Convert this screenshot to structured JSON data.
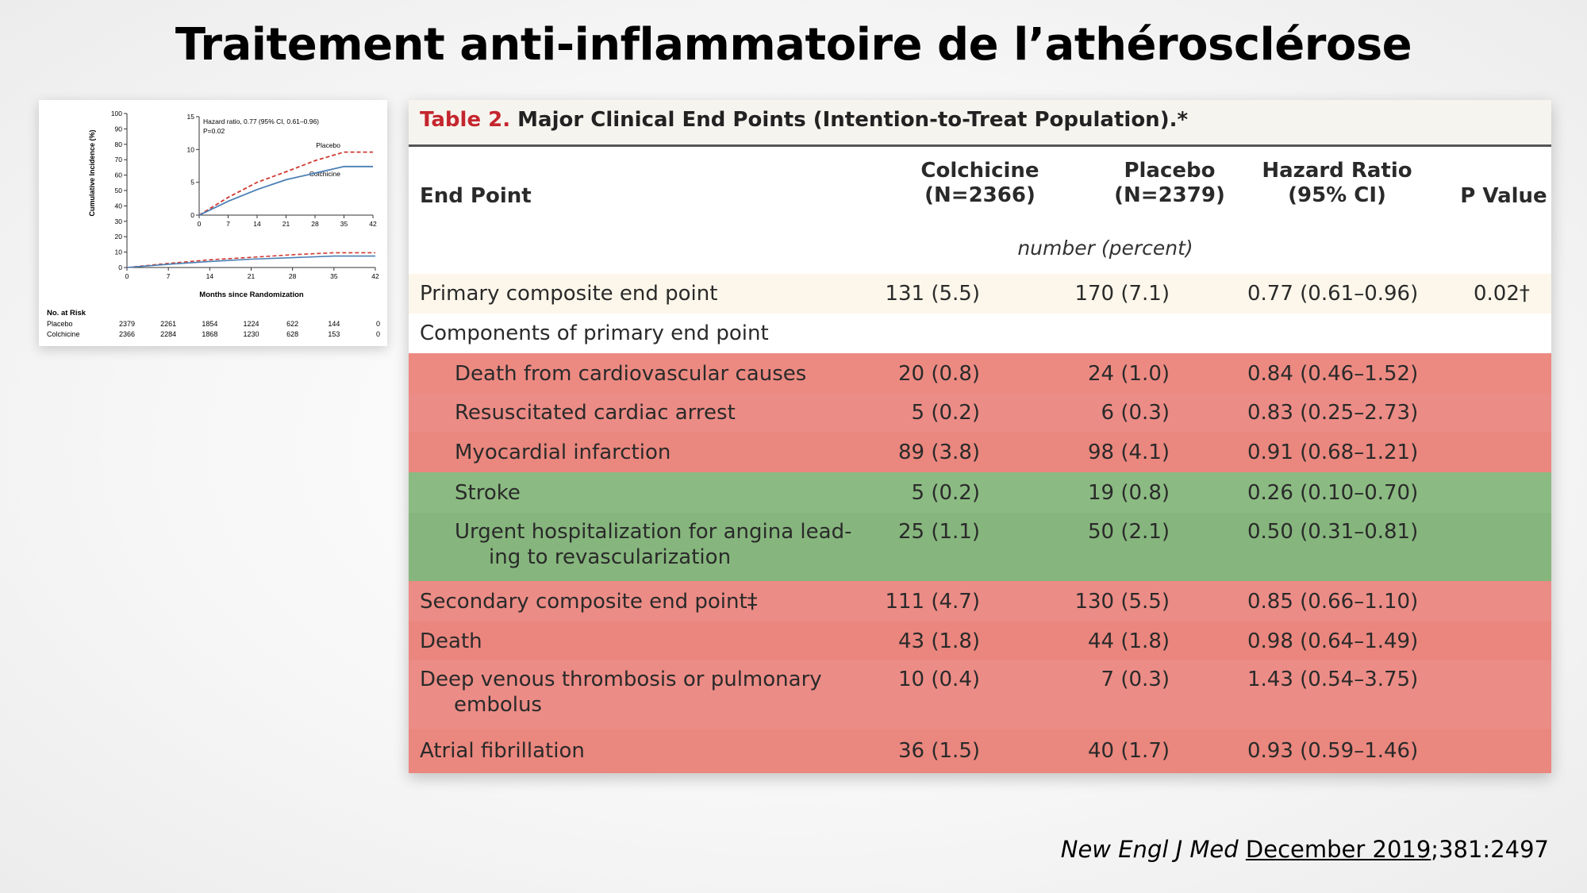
{
  "slide": {
    "title": "Traitement anti-inflammatoire de l’athérosclérose"
  },
  "km_chart": {
    "y_label": "Cumulative Incidence (%)",
    "x_label": "Months since Randomization",
    "y_ticks": [
      "0",
      "10",
      "20",
      "30",
      "40",
      "50",
      "60",
      "70",
      "80",
      "90",
      "100"
    ],
    "x_ticks": [
      "0",
      "7",
      "14",
      "21",
      "28",
      "35",
      "42"
    ],
    "inset_y_ticks": [
      "0",
      "5",
      "10",
      "15"
    ],
    "inset_x_ticks": [
      "0",
      "7",
      "14",
      "21",
      "28",
      "35",
      "42"
    ],
    "hr_text_1": "Hazard ratio, 0.77 (95% CI, 0.61–0.96)",
    "hr_text_2": "P=0.02",
    "placebo_label": "Placebo",
    "colchicine_label": "Colchicine",
    "risk_title": "No. at Risk",
    "risk_rows": [
      {
        "label": "Placebo",
        "values": [
          "2379",
          "2261",
          "1854",
          "1224",
          "622",
          "144",
          "0"
        ]
      },
      {
        "label": "Colchicine",
        "values": [
          "2366",
          "2284",
          "1868",
          "1230",
          "628",
          "153",
          "0"
        ]
      }
    ],
    "colors": {
      "placebo": "#d03a32",
      "colchicine": "#4a7fb5"
    },
    "chart_data": {
      "type": "line",
      "x": [
        0,
        7,
        14,
        21,
        28,
        35,
        42
      ],
      "series": [
        {
          "name": "Placebo",
          "values": [
            0,
            2.7,
            5.0,
            6.6,
            8.3,
            9.6,
            9.6
          ]
        },
        {
          "name": "Colchicine",
          "values": [
            0,
            2.1,
            3.9,
            5.4,
            6.4,
            7.4,
            7.4
          ]
        }
      ],
      "xlabel": "Months since Randomization",
      "ylabel": "Cumulative Incidence (%)",
      "ylim": [
        0,
        100
      ],
      "inset_ylim": [
        0,
        15
      ],
      "xlim": [
        0,
        42
      ]
    }
  },
  "table": {
    "caption_label": "Table 2.",
    "caption_text": "Major Clinical End Points (Intention-to-Treat Population).*",
    "headers": {
      "end_point": "End Point",
      "colchicine_1": "Colchicine",
      "colchicine_2": "(N=2366)",
      "placebo_1": "Placebo",
      "placebo_2": "(N=2379)",
      "hr_1": "Hazard Ratio",
      "hr_2": "(95% CI)",
      "pvalue": "P Value"
    },
    "units": "number (percent)",
    "rows": [
      {
        "name": "Primary composite end point",
        "colchicine": "131 (5.5)",
        "placebo": "170 (7.1)",
        "hr": "0.77 (0.61–0.96)",
        "p": "0.02†",
        "bg": "#fcf7ea"
      },
      {
        "name": "Components of primary end point",
        "colchicine": "",
        "placebo": "",
        "hr": "",
        "p": "",
        "bg": "#ffffff"
      },
      {
        "name": "Death from cardiovascular causes",
        "colchicine": "20 (0.8)",
        "placebo": "24 (1.0)",
        "hr": "0.84 (0.46–1.52)",
        "p": "",
        "bg": "#ec8a82"
      },
      {
        "name": "Resuscitated cardiac arrest",
        "colchicine": "5 (0.2)",
        "placebo": "6 (0.3)",
        "hr": "0.83 (0.25–2.73)",
        "p": "",
        "bg": "#ec8c86"
      },
      {
        "name": "Myocardial infarction",
        "colchicine": "89 (3.8)",
        "placebo": "98 (4.1)",
        "hr": "0.91 (0.68–1.21)",
        "p": "",
        "bg": "#ea877e"
      },
      {
        "name": "Stroke",
        "colchicine": "5 (0.2)",
        "placebo": "19 (0.8)",
        "hr": "0.26 (0.10–0.70)",
        "p": "",
        "bg": "#8bbb82"
      },
      {
        "name": "Urgent hospitalization for angina lead-",
        "name2": "ing to revascularization",
        "colchicine": "25 (1.1)",
        "placebo": "50 (2.1)",
        "hr": "0.50 (0.31–0.81)",
        "p": "",
        "bg": "#86b67d"
      },
      {
        "name": "Secondary composite end point‡",
        "colchicine": "111 (4.7)",
        "placebo": "130 (5.5)",
        "hr": "0.85 (0.66–1.10)",
        "p": "",
        "bg": "#ec8c86"
      },
      {
        "name": "Death",
        "colchicine": "43 (1.8)",
        "placebo": "44 (1.8)",
        "hr": "0.98 (0.64–1.49)",
        "p": "",
        "bg": "#ea867e"
      },
      {
        "name": "Deep venous thrombosis or pulmonary",
        "name2": "embolus",
        "colchicine": "10 (0.4)",
        "placebo": "7 (0.3)",
        "hr": "1.43 (0.54–3.75)",
        "p": "",
        "bg": "#ec8c86"
      },
      {
        "name": "Atrial fibrillation",
        "colchicine": "36 (1.5)",
        "placebo": "40 (1.7)",
        "hr": "0.93 (0.59–1.46)",
        "p": "",
        "bg": "#ea877e"
      }
    ]
  },
  "citation": {
    "journal": "New Engl J Med",
    "date": "December 2019",
    "ref": ";381:2497"
  }
}
